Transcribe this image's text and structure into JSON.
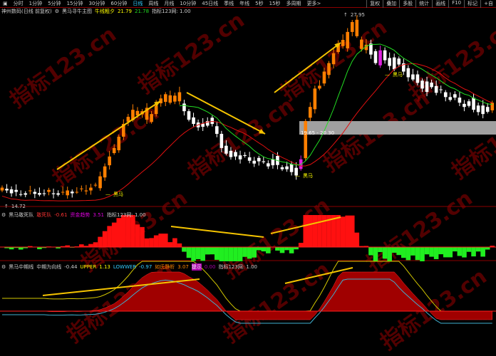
{
  "menu": {
    "items": [
      "分时",
      "1分钟",
      "5分钟",
      "15分钟",
      "30分钟",
      "60分钟",
      "日线",
      "周线",
      "月线",
      "10分钟",
      "45日线",
      "季线",
      "年线",
      "5秒",
      "15秒",
      "多周期",
      "更多>"
    ],
    "active": "日线"
  },
  "toolbar": {
    "items": [
      "复权",
      "叠加",
      "多股",
      "统计",
      "画线",
      "F10",
      "标记",
      "+自"
    ]
  },
  "main": {
    "stock": "神州数码(日线 前复权)",
    "indicator": "黑马寻牛主图",
    "line_label": "牛线粗夕",
    "v1": "21.79",
    "v2": "21.78",
    "tag": "指标123网: 1.00",
    "high_label": "27.95",
    "low_label": "14.72",
    "band_label": "19.65 - 20.30",
    "band_range": [
      19.65,
      20.3
    ],
    "signal": "黑马",
    "closes": [
      15.8,
      15.6,
      15.4,
      15.5,
      15.3,
      15.4,
      15.6,
      15.5,
      15.3,
      15.4,
      15.5,
      15.4,
      15.3,
      15.5,
      15.6,
      15.4,
      15.5,
      15.7,
      15.6,
      15.8,
      16.0,
      16.6,
      17.3,
      18.0,
      18.6,
      19.4,
      20.3,
      20.8,
      21.3,
      20.9,
      21.2,
      20.6,
      21.0,
      21.6,
      22.1,
      22.4,
      21.8,
      22.3,
      21.9,
      21.2,
      20.6,
      20.3,
      20.4,
      20.1,
      20.5,
      20.3,
      19.6,
      18.6,
      18.2,
      18.4,
      18.0,
      17.8,
      18.1,
      17.7,
      17.5,
      17.9,
      17.6,
      17.3,
      17.8,
      17.4,
      17.1,
      17.3,
      16.9,
      17.2,
      17.8,
      20.5,
      21.5,
      22.8,
      23.0,
      24.0,
      24.6,
      25.3,
      26.0,
      25.8,
      26.8,
      27.5,
      26.5,
      25.6,
      25.9,
      25.2,
      24.6,
      25.5,
      24.8,
      24.4,
      25.0,
      24.5,
      24.0,
      23.6,
      23.8,
      23.2,
      22.8,
      23.3,
      22.9,
      22.5,
      22.7,
      22.2,
      22.0,
      22.4,
      21.8,
      21.5,
      21.9,
      21.3,
      21.6,
      21.0,
      21.5,
      21.8
    ],
    "colors": {
      "up": "#ff7f00",
      "down": "#ffffff",
      "ma_slow": "#e01010",
      "ma_fast": "#22dd22",
      "band": "#a0a0a0"
    }
  },
  "pane2": {
    "name": "黑马敢死队",
    "l1": "敢死队",
    "v1": "-0.61",
    "l2": "资金趋势",
    "v2": "3.51",
    "tag": "指标123网: 1.00"
  },
  "pane3": {
    "name": "黑马中期线",
    "l1": "中期为向线",
    "v1": "-0.44",
    "l2": "UPPER",
    "v2": "1.13",
    "l3": "LOWWER",
    "v3": "-0.97",
    "l4": "如氏静析",
    "v4": "3.07",
    "l5": "提示",
    "v5": "0.00",
    "tag": "指标123网: 1.00"
  },
  "watermark": "指标123.cn"
}
